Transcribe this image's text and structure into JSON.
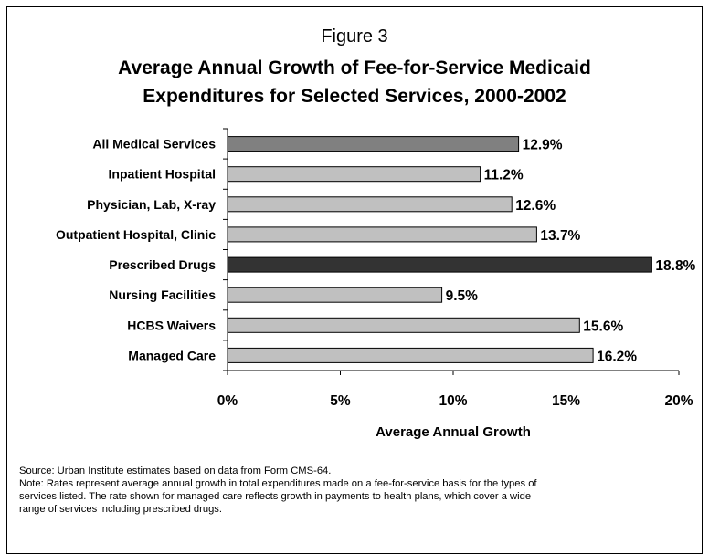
{
  "figure_label": "Figure 3",
  "title_lines": [
    "Average Annual Growth of Fee-for-Service Medicaid",
    "Expenditures for Selected Services, 2000-2002"
  ],
  "chart_data": {
    "type": "bar",
    "orientation": "horizontal",
    "categories": [
      "All Medical Services",
      "Inpatient Hospital",
      "Physician, Lab, X-ray",
      "Outpatient Hospital, Clinic",
      "Prescribed Drugs",
      "Nursing Facilities",
      "HCBS Waivers",
      "Managed Care"
    ],
    "values": [
      12.9,
      11.2,
      12.6,
      13.7,
      18.8,
      9.5,
      15.6,
      16.2
    ],
    "value_labels": [
      "12.9%",
      "11.2%",
      "12.6%",
      "13.7%",
      "18.8%",
      "9.5%",
      "15.6%",
      "16.2%"
    ],
    "bar_colors": [
      "#808080",
      "#c0c0c0",
      "#c0c0c0",
      "#c0c0c0",
      "#333333",
      "#c0c0c0",
      "#c0c0c0",
      "#c0c0c0"
    ],
    "xlim": [
      0,
      20
    ],
    "x_ticks": [
      0,
      5,
      10,
      15,
      20
    ],
    "x_tick_labels": [
      "0%",
      "5%",
      "10%",
      "15%",
      "20%"
    ],
    "xlabel": "Average Annual Growth",
    "ylabel": "",
    "grid": false
  },
  "footnote_lines": [
    "Source: Urban Institute estimates based on data from Form CMS-64.",
    "Note: Rates represent average annual growth in total expenditures made on a fee-for-service basis for the types of",
    "services listed. The rate shown for managed care reflects growth in payments to health plans, which cover a wide",
    "range of services including prescribed drugs."
  ]
}
